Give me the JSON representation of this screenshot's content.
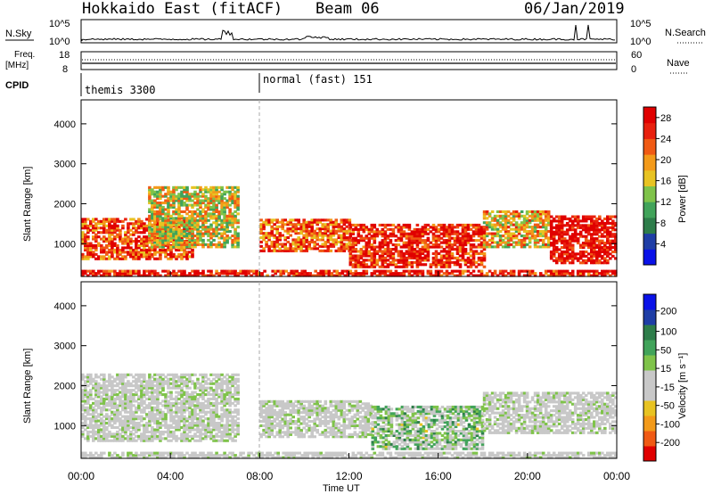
{
  "header": {
    "station": "Hokkaido East (fitACF)",
    "beam": "Beam 06",
    "date": "06/Jan/2019"
  },
  "aux": {
    "nsky_label": "N.Sky",
    "nsearch_label": "N.Search",
    "nsky_ticks": [
      "10^5",
      "10^0"
    ],
    "nsearch_ticks": [
      "10^5",
      "10^0"
    ],
    "freq_label_1": "Freq.",
    "freq_label_2": "[MHz]",
    "freq_ticks": [
      "18",
      "8"
    ],
    "nave_ticks": [
      "60",
      "0"
    ],
    "nave_label": "Nave",
    "cpid_label": "CPID",
    "cpid_segments": [
      {
        "label": "themis 3300",
        "start": 0
      },
      {
        "label": "normal (fast) 151",
        "start": 8
      }
    ]
  },
  "chart_data": [
    {
      "type": "heatmap",
      "name": "power",
      "ylabel": "Slant Range [km]",
      "xlabel": "",
      "ylim": [
        180,
        4600
      ],
      "y_ticks": [
        "4000",
        "3000",
        "2000",
        "1000"
      ],
      "y_tick_values": [
        4000,
        3000,
        2000,
        1000
      ],
      "colorbar": {
        "label": "Power [dB]",
        "ticks": [
          "28",
          "24",
          "20",
          "16",
          "12",
          "8",
          "4"
        ],
        "tick_values": [
          28,
          24,
          20,
          16,
          12,
          8,
          4
        ],
        "range": [
          0,
          30
        ],
        "colors": [
          "#0a12e8",
          "#1f3ea6",
          "#2e7d4a",
          "#41a35a",
          "#7fc34a",
          "#e8c322",
          "#f39a1a",
          "#f05a14",
          "#e8200e",
          "#e00000"
        ]
      },
      "x_range_hours": [
        0,
        24
      ],
      "bands": [
        {
          "t": [
            0,
            24
          ],
          "r_min": 180,
          "r_max": 330,
          "level": 0.9
        },
        {
          "t": [
            0,
            5
          ],
          "r_min": 600,
          "r_max": 1600,
          "level": 0.8
        },
        {
          "t": [
            3,
            7
          ],
          "r_min": 900,
          "r_max": 2400,
          "level": 0.55
        },
        {
          "t": [
            8,
            12
          ],
          "r_min": 800,
          "r_max": 1600,
          "level": 0.75
        },
        {
          "t": [
            12,
            18
          ],
          "r_min": 400,
          "r_max": 1500,
          "level": 0.9
        },
        {
          "t": [
            18,
            21
          ],
          "r_min": 900,
          "r_max": 1800,
          "level": 0.6
        },
        {
          "t": [
            21,
            24
          ],
          "r_min": 500,
          "r_max": 1700,
          "level": 0.95
        }
      ]
    },
    {
      "type": "heatmap",
      "name": "velocity",
      "ylabel": "Slant Range [km]",
      "xlabel": "Time UT",
      "ylim": [
        180,
        4600
      ],
      "y_ticks": [
        "4000",
        "3000",
        "2000",
        "1000"
      ],
      "y_tick_values": [
        4000,
        3000,
        2000,
        1000
      ],
      "x_ticks": [
        "00:00",
        "04:00",
        "08:00",
        "12:00",
        "16:00",
        "20:00",
        "00:00"
      ],
      "x_tick_hours": [
        0,
        4,
        8,
        12,
        16,
        20,
        24
      ],
      "colorbar": {
        "label": "Velocity [m s⁻¹]",
        "ticks": [
          "200",
          "100",
          "50",
          "15",
          "-15",
          "-50",
          "-100",
          "-200"
        ],
        "tick_values": [
          200,
          100,
          50,
          15,
          -15,
          -50,
          -100,
          -200
        ],
        "range": [
          -250,
          250
        ],
        "colors": [
          "#e00000",
          "#f05a14",
          "#f39a1a",
          "#e8c322",
          "#c8c8c8",
          "#c8c8c8",
          "#7fc34a",
          "#41a35a",
          "#2e7d4a",
          "#1f3ea6",
          "#0a12e8"
        ]
      },
      "x_range_hours": [
        0,
        24
      ],
      "bands": [
        {
          "t": [
            0,
            24
          ],
          "r_min": 180,
          "r_max": 330,
          "level": -0.1
        },
        {
          "t": [
            0,
            7
          ],
          "r_min": 600,
          "r_max": 2300,
          "level": 0.0
        },
        {
          "t": [
            8,
            13
          ],
          "r_min": 700,
          "r_max": 1600,
          "level": 0.05
        },
        {
          "t": [
            13,
            18
          ],
          "r_min": 400,
          "r_max": 1500,
          "level": 0.55
        },
        {
          "t": [
            18,
            24
          ],
          "r_min": 800,
          "r_max": 1800,
          "level": 0.0
        }
      ]
    }
  ]
}
